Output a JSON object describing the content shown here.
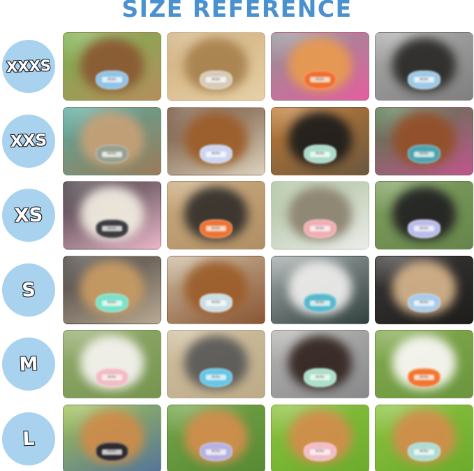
{
  "title": "SIZE REFERENCE",
  "harness_brand": "Aiitle",
  "colors": {
    "title_blue": "#4a91cf",
    "badge_bg": "#a9d2ee",
    "badge_text": "#ffffff",
    "badge_outline": "#23252e",
    "page_bg": "#ffffff"
  },
  "sizes": [
    "XXXS",
    "XXS",
    "XS",
    "S",
    "M",
    "L"
  ],
  "rows": [
    {
      "size": "XXXS",
      "photos": [
        {
          "name": "yorkie-picnic-table",
          "desc": "Yorkshire terrier in light blue harness sitting on wooden table with green grass behind",
          "bg": [
            "#79b04c",
            "#b68d5e"
          ],
          "subject": "#8a5a33",
          "harness": "#8fc3e8"
        },
        {
          "name": "tan-fluffy-puppy-car",
          "desc": "Fluffy tan puppy in grey harness held in a car",
          "bg": [
            "#cfae7d",
            "#e6d0a6"
          ],
          "subject": "#a9824f",
          "harness": "#d6cbb8"
        },
        {
          "name": "orange-kitten-pink-carrier",
          "desc": "Orange tabby kitten in orange Aiitle harness beside pink carrier",
          "bg": [
            "#909394",
            "#e45f9f"
          ],
          "subject": "#e79a50",
          "harness": "#f06f2e"
        },
        {
          "name": "black-yorkie-top-view",
          "desc": "Black yorkie puppy in light blue harness seen from above on grey floor",
          "bg": [
            "#ababab",
            "#7f7f7f"
          ],
          "subject": "#2e2c2a",
          "harness": "#9ec9e6"
        }
      ]
    },
    {
      "size": "XXS",
      "photos": [
        {
          "name": "tan-puppy-shaggy-rug",
          "desc": "Tan big-eared puppy in grey camo harness on shaggy brown rug",
          "bg": [
            "#57aaa0",
            "#9b7b58"
          ],
          "subject": "#c5a077",
          "harness": "#97a090"
        },
        {
          "name": "red-yorkiepoo-tile",
          "desc": "Red yorkie-poo in pale periwinkle harness on tile floor",
          "bg": [
            "#6b4a33",
            "#dcd2bc"
          ],
          "subject": "#9c5d2b",
          "harness": "#ccd6f2"
        },
        {
          "name": "black-puppy-autumn-leaves",
          "desc": "Black fluffy puppy in mint harness with leash sitting on autumn leaves",
          "bg": [
            "#c07b35",
            "#6b573f"
          ],
          "subject": "#201e1c",
          "harness": "#abdcc9"
        },
        {
          "name": "chihuahua-tropical-blanket",
          "desc": "Brown chihuahua in teal harness curled on tropical print blanket",
          "bg": [
            "#50784a",
            "#c2558c"
          ],
          "subject": "#93502a",
          "harness": "#4fa3b0"
        }
      ]
    },
    {
      "size": "XS",
      "photos": [
        {
          "name": "white-maltipoo-pink-blanket",
          "desc": "White maltipoo puppy in black Aiitle harness with pink blanket",
          "bg": [
            "#38343a",
            "#eab6c8"
          ],
          "subject": "#efe9de",
          "harness": "#3c3c3e"
        },
        {
          "name": "shiba-puppy-sand",
          "desc": "Black and tan shiba puppy in orange Aiitle harness on sand",
          "bg": [
            "#c9a97c",
            "#b08f66"
          ],
          "subject": "#36322d",
          "harness": "#ef7332"
        },
        {
          "name": "tabby-cat-windowsill",
          "desc": "Tabby cat in pink harness lying on white windowsill",
          "bg": [
            "#a9bf9a",
            "#ececea"
          ],
          "subject": "#8d8470",
          "harness": "#f0aeb2"
        },
        {
          "name": "black-white-puppy-grass",
          "desc": "Black and white puppy in lavender harness with leash sitting on grass",
          "bg": [
            "#7f9f5e",
            "#66854b"
          ],
          "subject": "#232323",
          "harness": "#bcbcec"
        }
      ]
    },
    {
      "size": "S",
      "photos": [
        {
          "name": "tan-dog-mint-harness",
          "desc": "Tan dog in mint harness with floral trim, side view indoors",
          "bg": [
            "#403c3a",
            "#b9a992"
          ],
          "subject": "#c79a63",
          "harness": "#79e2c8"
        },
        {
          "name": "red-poodle-hardwood",
          "desc": "Red toy poodle in pale blue harness lying on hardwood floor",
          "bg": [
            "#caba9f",
            "#8a5634"
          ],
          "subject": "#9c5e2c",
          "harness": "#ccdde4"
        },
        {
          "name": "white-doodle-park-path",
          "desc": "Shaggy white doodle in teal harness with red leash on park path",
          "bg": [
            "#a3aaa9",
            "#31403e"
          ],
          "subject": "#ebebe9",
          "harness": "#56b9cb"
        },
        {
          "name": "tan-puppy-car-seat",
          "desc": "Tan puppy in light blue harness standing on dark car seat",
          "bg": [
            "#3a3836",
            "#1f1d1c"
          ],
          "subject": "#d3b189",
          "harness": "#a9cbe9"
        }
      ]
    },
    {
      "size": "M",
      "photos": [
        {
          "name": "bichon-pink-harness-grass",
          "desc": "White bichon in pink harness with leash on grass, tongue out",
          "bg": [
            "#93ac6d",
            "#76944f"
          ],
          "subject": "#f4f2ee",
          "harness": "#f3bbc4"
        },
        {
          "name": "schnauzer-top-view",
          "desc": "Grey schnauzer in sky blue harness seen from above on tan carpet",
          "bg": [
            "#cfbf9e",
            "#bdab88"
          ],
          "subject": "#5b5a58",
          "harness": "#66c6e8"
        },
        {
          "name": "chocolate-poodle-mint-harness",
          "desc": "Chocolate poodle in mint and pink harness",
          "bg": [
            "#b6b6b4",
            "#88888a"
          ],
          "subject": "#352723",
          "harness": "#abe0cb"
        },
        {
          "name": "bichon-orange-harness",
          "desc": "White bichon in orange harness with leash on grass, tongue out",
          "bg": [
            "#83a94f",
            "#6b963e"
          ],
          "subject": "#f8f7f3",
          "harness": "#f3742f"
        }
      ]
    },
    {
      "size": "L",
      "photos": [
        {
          "name": "shiba-black-harness-profile",
          "desc": "Shiba inu in black harness with pink trim, profile view, person in jeans behind",
          "bg": [
            "#a2c253",
            "#54749a"
          ],
          "subject": "#cd8c4a",
          "harness": "#2c2a2c"
        },
        {
          "name": "shiba-lavender-harness",
          "desc": "Smiling shiba inu in lavender harness with leash on grass",
          "bg": [
            "#74a448",
            "#578a34"
          ],
          "subject": "#d18e4c",
          "harness": "#b7b1e2"
        },
        {
          "name": "shiba-pink-harness",
          "desc": "Shiba inu in pink harness sitting in bright green grass",
          "bg": [
            "#8cc23e",
            "#6cab2d"
          ],
          "subject": "#d18e4c",
          "harness": "#f2bcc6"
        },
        {
          "name": "shiba-mint-harness",
          "desc": "Shiba inu in mint blue harness sitting in tall green grass",
          "bg": [
            "#8cc23e",
            "#6cab2d"
          ],
          "subject": "#d18e4c",
          "harness": "#aedbd2"
        }
      ]
    }
  ]
}
